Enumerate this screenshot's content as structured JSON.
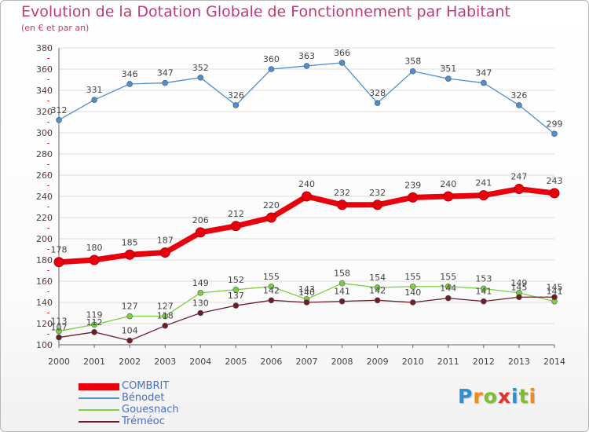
{
  "header": {
    "title": "Evolution de la Dotation Globale de Fonctionnement par Habitant",
    "subtitle": "(en € et par an)"
  },
  "logo": {
    "text": "Proxiti"
  },
  "colors": {
    "title": "#c13a78",
    "axis": "#444444",
    "grid": "#dddddd",
    "legend_text": "#4a6fc0"
  },
  "chart_data": {
    "type": "line",
    "title": "Evolution de la Dotation Globale de Fonctionnement par Habitant",
    "subtitle": "(en € et par an)",
    "xlabel": "",
    "ylabel": "",
    "x": [
      "2000",
      "2001",
      "2002",
      "2003",
      "2004",
      "2005",
      "2006",
      "2007",
      "2008",
      "2009",
      "2010",
      "2011",
      "2012",
      "2013",
      "2014"
    ],
    "ylim": [
      100,
      380
    ],
    "yticks": [
      100,
      120,
      140,
      160,
      180,
      200,
      220,
      240,
      260,
      280,
      300,
      320,
      340,
      360,
      380
    ],
    "grid": true,
    "legend_position": "bottom-left",
    "series": [
      {
        "name": "COMBRIT",
        "color": "#e8000c",
        "emphasis": true,
        "values": [
          178,
          180,
          185,
          187,
          206,
          212,
          220,
          240,
          232,
          232,
          239,
          240,
          241,
          247,
          243
        ]
      },
      {
        "name": "Bénodet",
        "color": "#4f8fcf",
        "values": [
          312,
          331,
          346,
          347,
          352,
          326,
          360,
          363,
          366,
          328,
          358,
          351,
          347,
          326,
          299
        ]
      },
      {
        "name": "Gouesnach",
        "color": "#7ccf3f",
        "values": [
          113,
          119,
          127,
          127,
          149,
          152,
          155,
          143,
          158,
          154,
          155,
          155,
          153,
          149,
          141
        ]
      },
      {
        "name": "Tréméoc",
        "color": "#6b1d2a",
        "values": [
          107,
          112,
          104,
          118,
          130,
          137,
          142,
          140,
          141,
          142,
          140,
          144,
          141,
          145,
          145
        ]
      }
    ]
  }
}
